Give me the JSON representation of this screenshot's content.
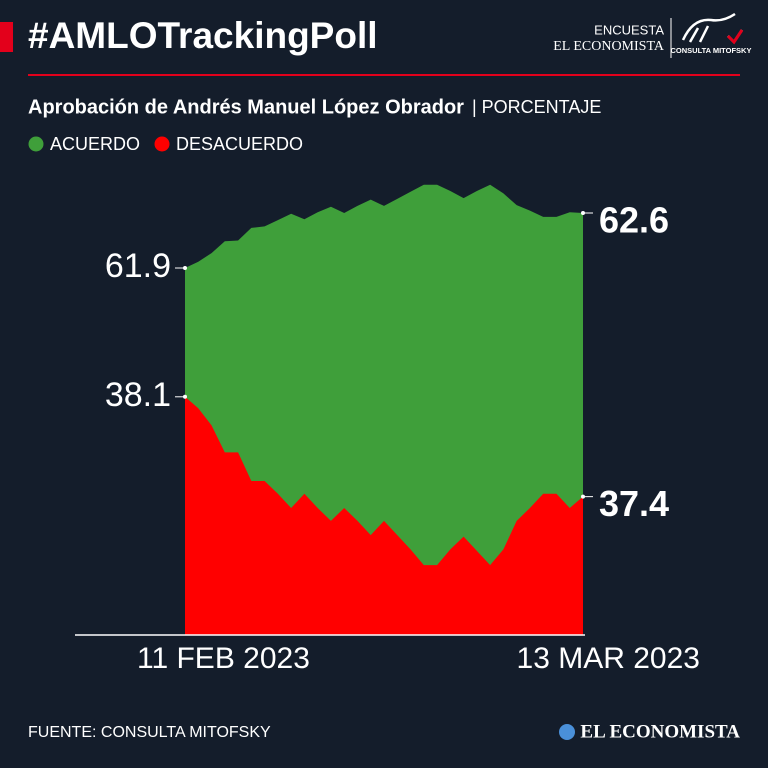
{
  "chart_data": {
    "type": "area",
    "title": "#AMLOTrackingPoll",
    "subtitle": "Aprobación de Andrés Manuel López Obrador",
    "unit": "| PORCENTAJE",
    "logo": {
      "top": "ENCUESTA",
      "name": "EL ECONOMISTA",
      "badge": "CONSULTA MITOFSKY"
    },
    "source": "FUENTE: CONSULTA MITOFSKY",
    "footer_logo": "EL ECONOMISTA",
    "categories": [
      "11 FEB 2023",
      null,
      null,
      null,
      null,
      null,
      null,
      null,
      null,
      null,
      null,
      null,
      null,
      null,
      null,
      null,
      null,
      null,
      null,
      null,
      null,
      null,
      null,
      null,
      null,
      null,
      null,
      null,
      null,
      null,
      "13 MAR 2023"
    ],
    "ylim": [
      57.23,
      63.02
    ],
    "y2lim": [
      36.43,
      39.62
    ],
    "series": [
      {
        "name": "ACUERDO",
        "color": "#3f9f3a",
        "values": [
          61.9,
          61.98,
          62.09,
          62.24,
          62.25,
          62.41,
          62.43,
          62.51,
          62.59,
          62.52,
          62.61,
          62.68,
          62.6,
          62.69,
          62.77,
          62.69,
          62.78,
          62.87,
          62.96,
          62.96,
          62.88,
          62.79,
          62.88,
          62.96,
          62.85,
          62.7,
          62.63,
          62.55,
          62.55,
          62.61,
          62.6
        ]
      },
      {
        "name": "DESACUERDO",
        "color": "#ff0000",
        "axis": "y2",
        "values": [
          38.1,
          38.02,
          37.9,
          37.71,
          37.71,
          37.51,
          37.51,
          37.42,
          37.32,
          37.42,
          37.32,
          37.23,
          37.32,
          37.23,
          37.13,
          37.23,
          37.13,
          37.03,
          36.92,
          36.92,
          37.03,
          37.12,
          37.02,
          36.92,
          37.03,
          37.23,
          37.32,
          37.42,
          37.42,
          37.32,
          37.4
        ]
      }
    ]
  }
}
